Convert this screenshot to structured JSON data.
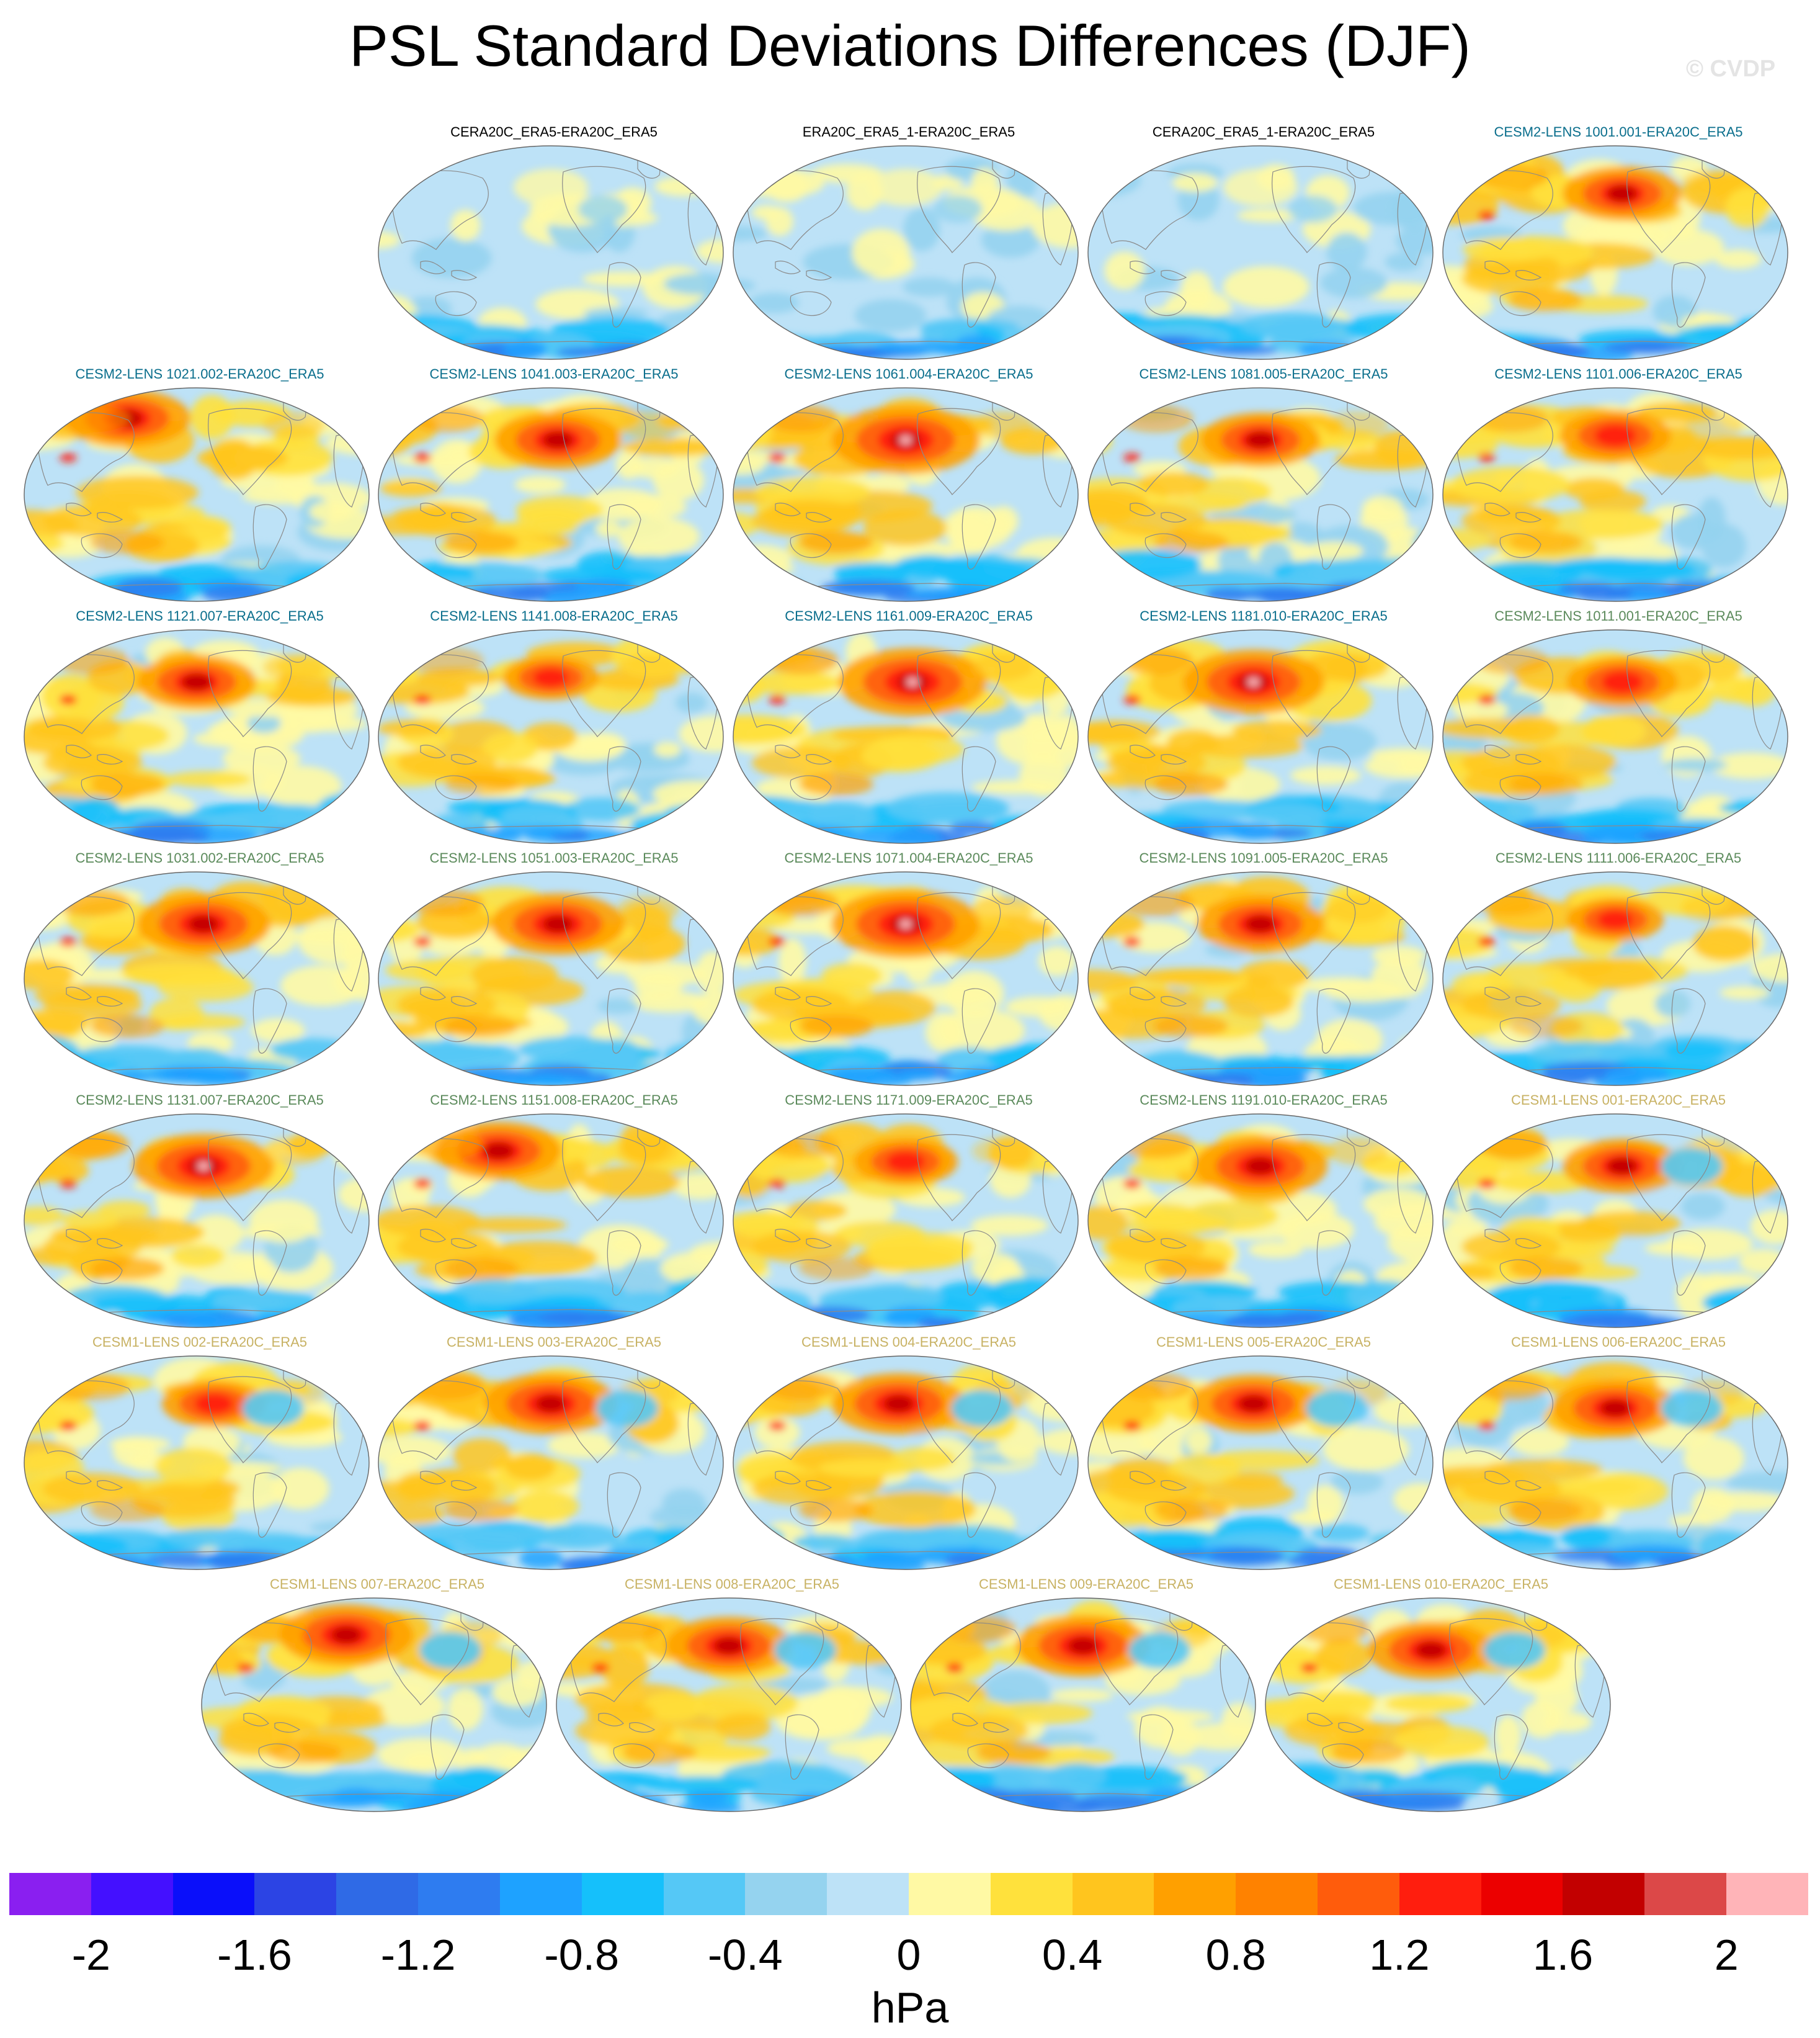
{
  "title": "PSL Standard Deviations Differences (DJF)",
  "watermark": "© CVDP",
  "units": "hPa",
  "colors": {
    "label_black": "#000000",
    "label_cesm2_a": "#0a6e8c",
    "label_cesm2_b": "#5b8a5b",
    "label_cesm1": "#c8b264",
    "coast": "#8a8a8a",
    "outline": "#666666"
  },
  "colorbar": {
    "colors": [
      "#8a1ff0",
      "#4410ff",
      "#0a0ffa",
      "#2c44e4",
      "#2f6ae6",
      "#2e7cf0",
      "#1ea2ff",
      "#15c0fb",
      "#55c8f6",
      "#95d3ef",
      "#bde2f7",
      "#fff9a4",
      "#ffe13c",
      "#ffc51e",
      "#ffa000",
      "#ff8200",
      "#ff5c0c",
      "#ff1e0e",
      "#ec0000",
      "#c20000",
      "#dc4848",
      "#ffb4b8"
    ],
    "tick_labels": [
      "-2",
      "-1.6",
      "-1.2",
      "-0.8",
      "-0.4",
      "0",
      "0.4",
      "0.8",
      "1.2",
      "1.6",
      "2"
    ]
  },
  "panels": [
    {
      "label": "CERA20C_ERA5-ERA20C_ERA5",
      "group": "obs",
      "intensity": 0.0,
      "peak": [
        0,
        0
      ],
      "seed": 1
    },
    {
      "label": "ERA20C_ERA5_1-ERA20C_ERA5",
      "group": "obs",
      "intensity": 0.05,
      "peak": [
        0,
        0
      ],
      "seed": 2
    },
    {
      "label": "CERA20C_ERA5_1-ERA20C_ERA5",
      "group": "obs",
      "intensity": 0.05,
      "peak": [
        0,
        0
      ],
      "seed": 3
    },
    {
      "label": "CESM2-LENS 1001.001-ERA20C_ERA5",
      "group": "cesm2a",
      "intensity": 0.8,
      "peak": [
        0.52,
        0.2
      ],
      "seed": 4
    },
    {
      "label": "CESM2-LENS 1021.002-ERA20C_ERA5",
      "group": "cesm2a",
      "intensity": 0.85,
      "peak": [
        0.3,
        0.12
      ],
      "seed": 5
    },
    {
      "label": "CESM2-LENS 1041.003-ERA20C_ERA5",
      "group": "cesm2a",
      "intensity": 0.85,
      "peak": [
        0.52,
        0.22
      ],
      "seed": 6
    },
    {
      "label": "CESM2-LENS 1061.004-ERA20C_ERA5",
      "group": "cesm2a",
      "intensity": 1.0,
      "peak": [
        0.5,
        0.22
      ],
      "seed": 7
    },
    {
      "label": "CESM2-LENS 1081.005-ERA20C_ERA5",
      "group": "cesm2a",
      "intensity": 0.8,
      "peak": [
        0.5,
        0.22
      ],
      "seed": 8
    },
    {
      "label": "CESM2-LENS 1101.006-ERA20C_ERA5",
      "group": "cesm2a",
      "intensity": 0.75,
      "peak": [
        0.5,
        0.2
      ],
      "seed": 9
    },
    {
      "label": "CESM2-LENS 1121.007-ERA20C_ERA5",
      "group": "cesm2a",
      "intensity": 0.8,
      "peak": [
        0.5,
        0.22
      ],
      "seed": 10
    },
    {
      "label": "CESM2-LENS 1141.008-ERA20C_ERA5",
      "group": "cesm2a",
      "intensity": 0.65,
      "peak": [
        0.5,
        0.2
      ],
      "seed": 11
    },
    {
      "label": "CESM2-LENS 1161.009-ERA20C_ERA5",
      "group": "cesm2a",
      "intensity": 1.0,
      "peak": [
        0.52,
        0.22
      ],
      "seed": 12
    },
    {
      "label": "CESM2-LENS 1181.010-ERA20C_ERA5",
      "group": "cesm2a",
      "intensity": 0.95,
      "peak": [
        0.48,
        0.22
      ],
      "seed": 13
    },
    {
      "label": "CESM2-LENS 1011.001-ERA20C_ERA5",
      "group": "cesm2b",
      "intensity": 0.75,
      "peak": [
        0.52,
        0.22
      ],
      "seed": 14
    },
    {
      "label": "CESM2-LENS 1031.002-ERA20C_ERA5",
      "group": "cesm2b",
      "intensity": 0.9,
      "peak": [
        0.52,
        0.22
      ],
      "seed": 15
    },
    {
      "label": "CESM2-LENS 1051.003-ERA20C_ERA5",
      "group": "cesm2b",
      "intensity": 0.9,
      "peak": [
        0.52,
        0.22
      ],
      "seed": 16
    },
    {
      "label": "CESM2-LENS 1071.004-ERA20C_ERA5",
      "group": "cesm2b",
      "intensity": 1.0,
      "peak": [
        0.5,
        0.22
      ],
      "seed": 17
    },
    {
      "label": "CESM2-LENS 1091.005-ERA20C_ERA5",
      "group": "cesm2b",
      "intensity": 0.85,
      "peak": [
        0.5,
        0.22
      ],
      "seed": 18
    },
    {
      "label": "CESM2-LENS 1111.006-ERA20C_ERA5",
      "group": "cesm2b",
      "intensity": 0.65,
      "peak": [
        0.5,
        0.2
      ],
      "seed": 19
    },
    {
      "label": "CESM2-LENS 1131.007-ERA20C_ERA5",
      "group": "cesm2b",
      "intensity": 0.95,
      "peak": [
        0.52,
        0.22
      ],
      "seed": 20
    },
    {
      "label": "CESM2-LENS 1151.008-ERA20C_ERA5",
      "group": "cesm2b",
      "intensity": 0.85,
      "peak": [
        0.35,
        0.15
      ],
      "seed": 21
    },
    {
      "label": "CESM2-LENS 1171.009-ERA20C_ERA5",
      "group": "cesm2b",
      "intensity": 0.7,
      "peak": [
        0.5,
        0.2
      ],
      "seed": 22
    },
    {
      "label": "CESM2-LENS 1191.010-ERA20C_ERA5",
      "group": "cesm2b",
      "intensity": 0.9,
      "peak": [
        0.5,
        0.22
      ],
      "seed": 23
    },
    {
      "label": "CESM1-LENS 001-ERA20C_ERA5",
      "group": "cesm1",
      "intensity": 0.8,
      "peak": [
        0.52,
        0.22
      ],
      "seed": 24
    },
    {
      "label": "CESM1-LENS 002-ERA20C_ERA5",
      "group": "cesm1",
      "intensity": 0.7,
      "peak": [
        0.55,
        0.2
      ],
      "seed": 25
    },
    {
      "label": "CESM1-LENS 003-ERA20C_ERA5",
      "group": "cesm1",
      "intensity": 0.9,
      "peak": [
        0.5,
        0.2
      ],
      "seed": 26
    },
    {
      "label": "CESM1-LENS 004-ERA20C_ERA5",
      "group": "cesm1",
      "intensity": 0.9,
      "peak": [
        0.48,
        0.2
      ],
      "seed": 27
    },
    {
      "label": "CESM1-LENS 005-ERA20C_ERA5",
      "group": "cesm1",
      "intensity": 0.85,
      "peak": [
        0.48,
        0.2
      ],
      "seed": 28
    },
    {
      "label": "CESM1-LENS 006-ERA20C_ERA5",
      "group": "cesm1",
      "intensity": 0.85,
      "peak": [
        0.5,
        0.22
      ],
      "seed": 29
    },
    {
      "label": "CESM1-LENS 007-ERA20C_ERA5",
      "group": "cesm1",
      "intensity": 0.9,
      "peak": [
        0.42,
        0.15
      ],
      "seed": 30
    },
    {
      "label": "CESM1-LENS 008-ERA20C_ERA5",
      "group": "cesm1",
      "intensity": 0.85,
      "peak": [
        0.5,
        0.2
      ],
      "seed": 31
    },
    {
      "label": "CESM1-LENS 009-ERA20C_ERA5",
      "group": "cesm1",
      "intensity": 0.9,
      "peak": [
        0.5,
        0.2
      ],
      "seed": 32
    },
    {
      "label": "CESM1-LENS 010-ERA20C_ERA5",
      "group": "cesm1",
      "intensity": 0.85,
      "peak": [
        0.48,
        0.22
      ],
      "seed": 33
    }
  ]
}
